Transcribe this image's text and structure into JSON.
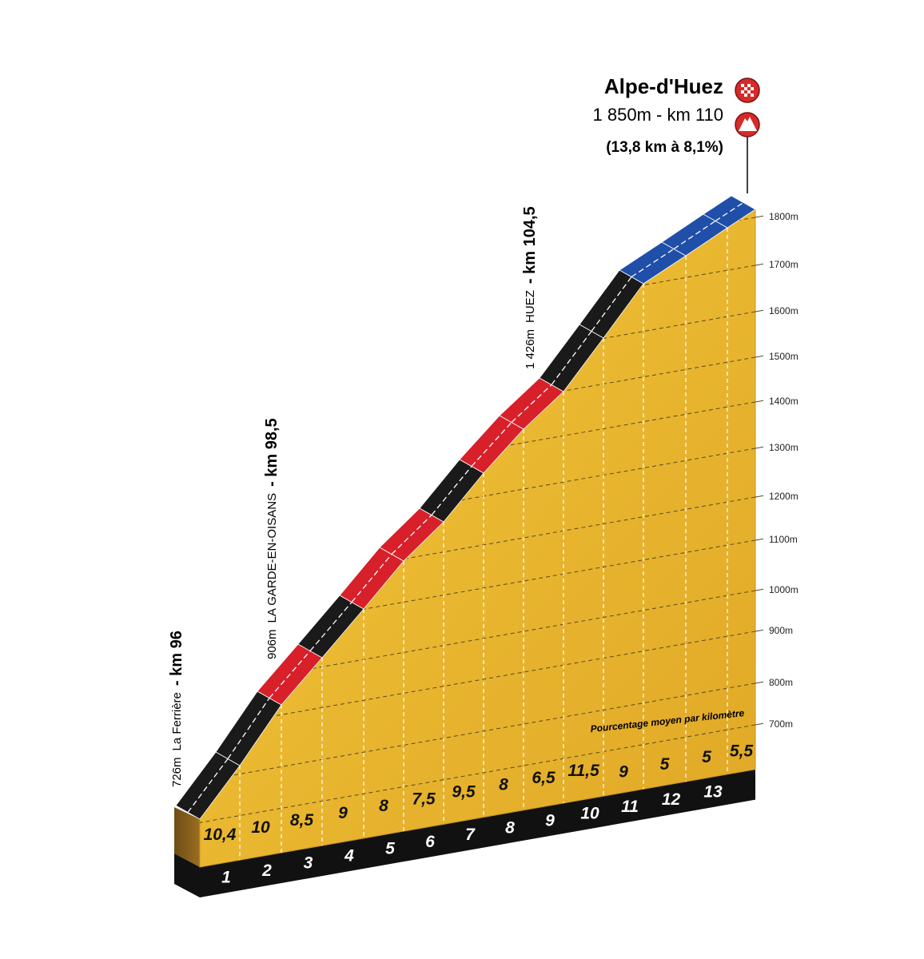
{
  "summit": {
    "name": "Alpe-d'Huez",
    "altitude_km": "1 850m - km 110",
    "climb": "(13,8 km à 8,1%)"
  },
  "waypoints": [
    {
      "altitude": "726m",
      "name": "La Ferrière",
      "km": "- km 96"
    },
    {
      "altitude": "906m",
      "name": "LA GARDE-EN-OISANS",
      "km": "- km 98,5"
    },
    {
      "altitude": "1 426m",
      "name": "HUEZ",
      "km": "- km 104,5"
    }
  ],
  "altitude_labels": [
    "1800m",
    "1700m",
    "1600m",
    "1500m",
    "1400m",
    "1300m",
    "1200m",
    "1100m",
    "1000m",
    "900m",
    "800m",
    "700m"
  ],
  "legend": "Pourcentage moyen par kilomètre",
  "gradients": [
    "10,4",
    "10",
    "8,5",
    "9",
    "8",
    "7,5",
    "9,5",
    "8",
    "6,5",
    "11,5",
    "9",
    "5",
    "5",
    "5,5"
  ],
  "km_markers": [
    "1",
    "2",
    "3",
    "4",
    "5",
    "6",
    "7",
    "8",
    "9",
    "10",
    "11",
    "12",
    "13"
  ]
}
